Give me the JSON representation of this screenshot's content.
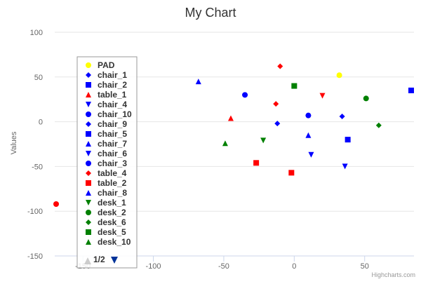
{
  "chart_data": {
    "type": "scatter",
    "title": "My Chart",
    "xlabel": "",
    "ylabel": "Values",
    "xlim": [
      -170,
      85
    ],
    "ylim": [
      -150,
      100
    ],
    "x_ticks": [
      -150,
      -100,
      -50,
      0,
      50
    ],
    "y_ticks": [
      -150,
      -100,
      -50,
      0,
      50,
      100
    ],
    "grid": "horizontal",
    "legend": {
      "placement": "left",
      "page": "1/2"
    },
    "credits": "Highcharts.com",
    "series": [
      {
        "name": "PAD",
        "color": "#ffff00",
        "marker": "circle",
        "points": [
          [
            32,
            52
          ]
        ]
      },
      {
        "name": "chair_1",
        "color": "#0000ff",
        "marker": "diamond",
        "points": [
          [
            -12,
            -2
          ],
          [
            34,
            6
          ]
        ]
      },
      {
        "name": "chair_2",
        "color": "#0000ff",
        "marker": "square",
        "points": [
          [
            83,
            35
          ],
          [
            38,
            -20
          ]
        ]
      },
      {
        "name": "table_1",
        "color": "#ff0000",
        "marker": "triangle",
        "points": [
          [
            -45,
            4
          ]
        ]
      },
      {
        "name": "chair_4",
        "color": "#0000ff",
        "marker": "triangle-down",
        "points": [
          [
            12,
            -37
          ],
          [
            36,
            -50
          ]
        ]
      },
      {
        "name": "chair_10",
        "color": "#0000ff",
        "marker": "circle",
        "points": [
          [
            -35,
            30
          ],
          [
            10,
            7
          ]
        ]
      },
      {
        "name": "chair_9",
        "color": "#0000ff",
        "marker": "diamond",
        "points": []
      },
      {
        "name": "chair_5",
        "color": "#0000ff",
        "marker": "square",
        "points": []
      },
      {
        "name": "chair_7",
        "color": "#0000ff",
        "marker": "triangle",
        "points": [
          [
            -68,
            45
          ],
          [
            10,
            -15
          ]
        ]
      },
      {
        "name": "chair_6",
        "color": "#0000ff",
        "marker": "triangle-down",
        "points": []
      },
      {
        "name": "chair_3",
        "color": "#0000ff",
        "marker": "circle",
        "points": []
      },
      {
        "name": "table_4",
        "color": "#ff0000",
        "marker": "diamond",
        "points": [
          [
            -10,
            62
          ],
          [
            -13,
            20
          ]
        ]
      },
      {
        "name": "table_2",
        "color": "#ff0000",
        "marker": "square",
        "points": [
          [
            -27,
            -46
          ],
          [
            -2,
            -57
          ]
        ]
      },
      {
        "name": "chair_8",
        "color": "#0000ff",
        "marker": "triangle",
        "points": []
      },
      {
        "name": "desk_1",
        "color": "#008000",
        "marker": "triangle-down",
        "points": [
          [
            -22,
            -21
          ]
        ]
      },
      {
        "name": "desk_2",
        "color": "#008000",
        "marker": "circle",
        "points": [
          [
            51,
            26
          ]
        ]
      },
      {
        "name": "desk_6",
        "color": "#008000",
        "marker": "diamond",
        "points": [
          [
            60,
            -4
          ]
        ]
      },
      {
        "name": "desk_5",
        "color": "#008000",
        "marker": "square",
        "points": [
          [
            0,
            40
          ]
        ]
      },
      {
        "name": "desk_10",
        "color": "#008000",
        "marker": "triangle",
        "points": [
          [
            -49,
            -24
          ]
        ]
      },
      {
        "name": "",
        "color": "#ff0000",
        "marker": "triangle-down",
        "points": [
          [
            20,
            29
          ]
        ]
      },
      {
        "name": "",
        "color": "#ff0000",
        "marker": "circle",
        "points": [
          [
            -169,
            -92
          ]
        ]
      }
    ]
  }
}
